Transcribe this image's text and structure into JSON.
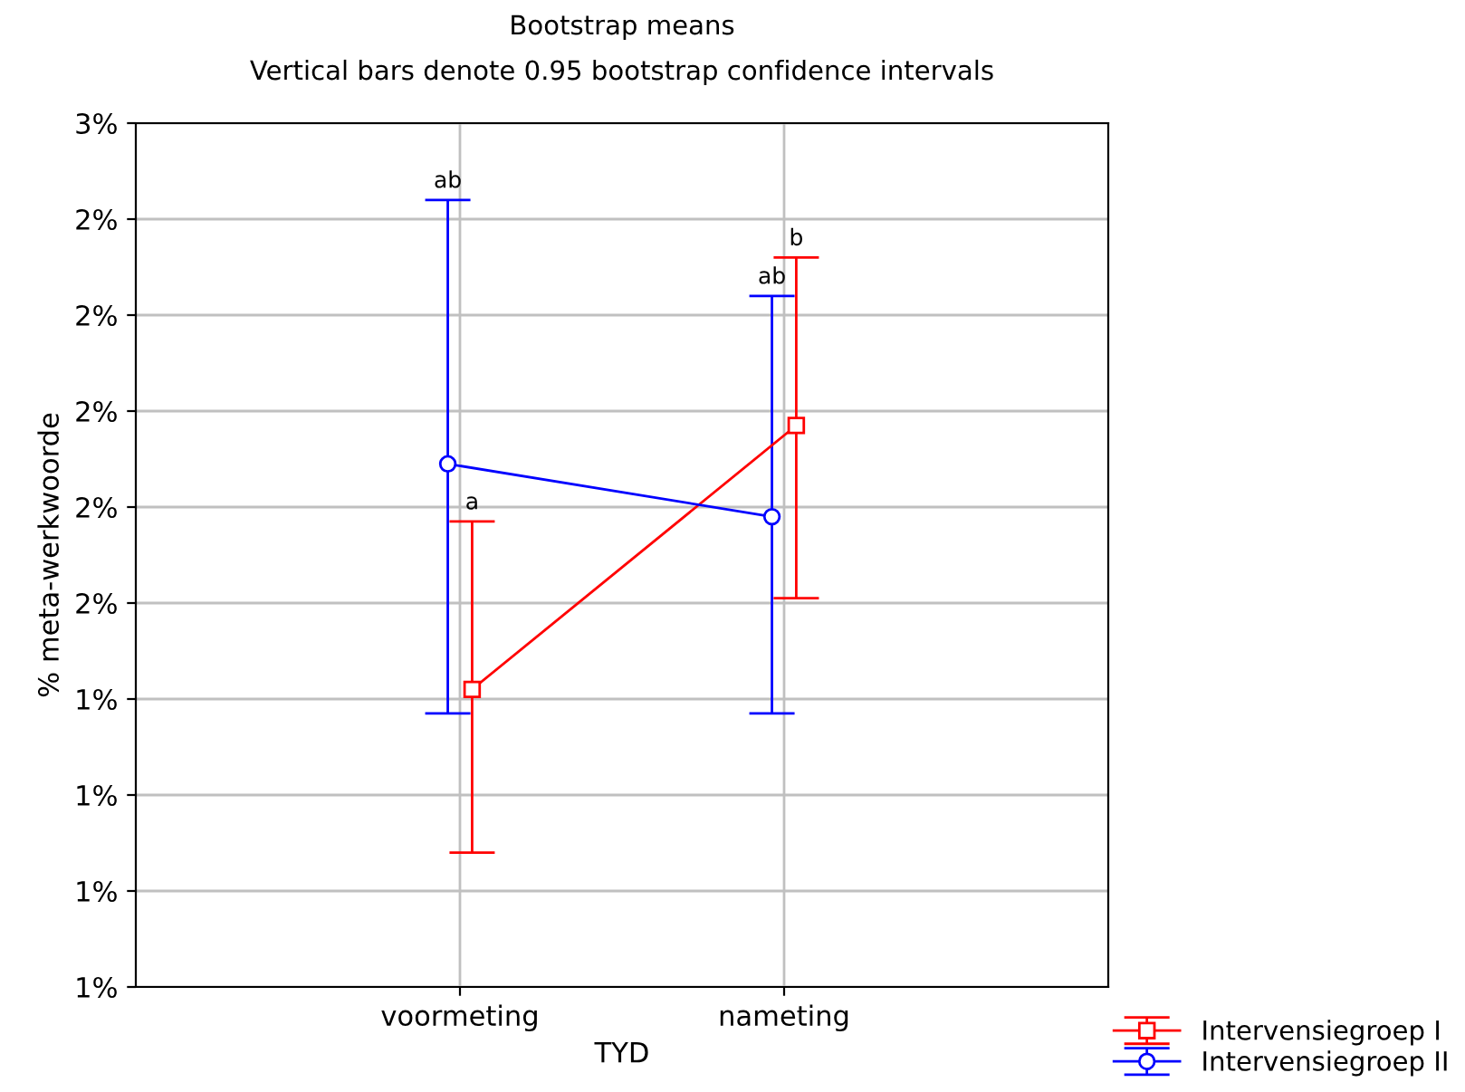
{
  "chart_data": {
    "type": "line",
    "title": "Bootstrap means",
    "subtitle": "Vertical bars denote 0.95 bootstrap confidence intervals",
    "xlabel": "TYD",
    "ylabel": "% meta-werkwoorde",
    "categories": [
      "voormeting",
      "nameting"
    ],
    "series": [
      {
        "name": "Intervensiegroep I",
        "color": "#ff0000",
        "marker": "square",
        "values": [
          1.42,
          1.97
        ],
        "errors": [
          [
            1.08,
            1.77
          ],
          [
            1.61,
            2.32
          ]
        ]
      },
      {
        "name": "Intervensiegroep II",
        "color": "#0000ff",
        "marker": "circle",
        "values": [
          1.89,
          1.78
        ],
        "errors": [
          [
            1.37,
            2.44
          ],
          [
            1.37,
            2.24
          ]
        ]
      }
    ],
    "annotations": [
      {
        "text": "a",
        "x": "voormeting",
        "y": 1.77
      },
      {
        "text": "b",
        "x": "nameting",
        "y": 2.32
      },
      {
        "text": "ab",
        "x": "voormeting",
        "y": 2.44
      },
      {
        "text": "ab",
        "x": "nameting",
        "y": 2.24
      }
    ],
    "ylim": [
      0.8,
      2.6
    ],
    "yticks": [
      {
        "value": 0.8,
        "label": "1%"
      },
      {
        "value": 1.0,
        "label": "1%"
      },
      {
        "value": 1.2,
        "label": "1%"
      },
      {
        "value": 1.4,
        "label": "1%"
      },
      {
        "value": 1.6,
        "label": "2%"
      },
      {
        "value": 1.8,
        "label": "2%"
      },
      {
        "value": 2.0,
        "label": "2%"
      },
      {
        "value": 2.2,
        "label": "2%"
      },
      {
        "value": 2.4,
        "label": "2%"
      },
      {
        "value": 2.6,
        "label": "3%"
      }
    ],
    "grid": true,
    "legend": "bottom right",
    "line_style": "solid"
  }
}
